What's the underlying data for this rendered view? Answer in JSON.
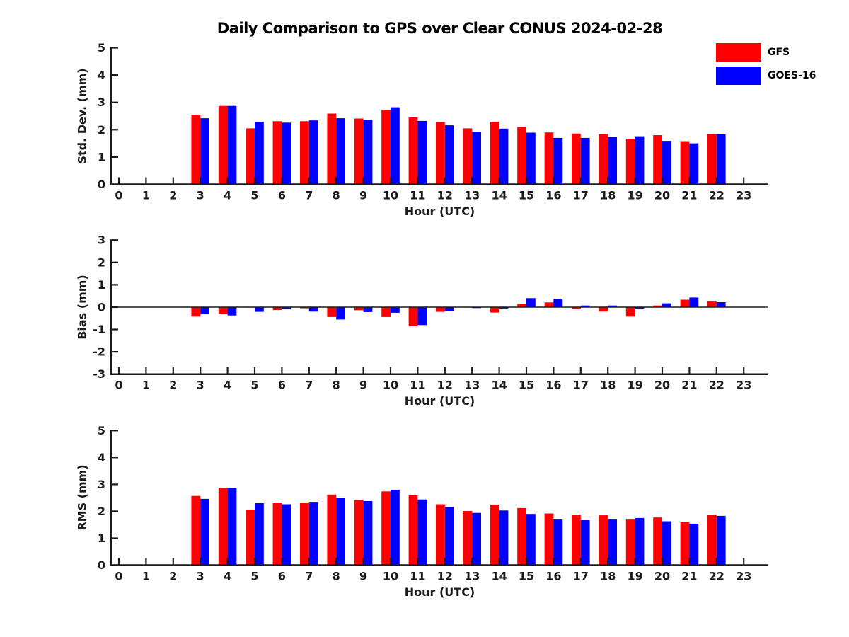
{
  "title": "Daily Comparison to GPS over Clear CONUS 2024-02-28",
  "legend": {
    "position": "top-right",
    "items": [
      {
        "label": "GFS",
        "color": "#ff0000"
      },
      {
        "label": "GOES-16",
        "color": "#0000ff"
      }
    ]
  },
  "colors": {
    "background": "#ffffff",
    "axis": "#1a1a1a",
    "gfs": "#ff0000",
    "goes16": "#0000ff"
  },
  "chart_data": [
    {
      "type": "bar",
      "title": "",
      "ylabel": "Std. Dev. (mm)",
      "xlabel": "Hour (UTC)",
      "ylim": [
        0,
        5
      ],
      "yticks": [
        0,
        1,
        2,
        3,
        4,
        5
      ],
      "grid": false,
      "categories": [
        0,
        1,
        2,
        3,
        4,
        5,
        6,
        7,
        8,
        9,
        10,
        11,
        12,
        13,
        14,
        15,
        16,
        17,
        18,
        19,
        20,
        21,
        22,
        23
      ],
      "series": [
        {
          "name": "GFS",
          "color": "#ff0000",
          "values": [
            null,
            null,
            null,
            2.55,
            2.87,
            2.05,
            2.31,
            2.31,
            2.59,
            2.41,
            2.73,
            2.45,
            2.28,
            2.05,
            2.29,
            2.1,
            1.9,
            1.86,
            1.84,
            1.67,
            1.8,
            1.58,
            1.84,
            null
          ]
        },
        {
          "name": "GOES-16",
          "color": "#0000ff",
          "values": [
            null,
            null,
            null,
            2.42,
            2.87,
            2.29,
            2.26,
            2.34,
            2.42,
            2.36,
            2.82,
            2.32,
            2.16,
            1.93,
            2.04,
            1.89,
            1.7,
            1.7,
            1.73,
            1.76,
            1.59,
            1.5,
            1.84,
            null
          ]
        }
      ]
    },
    {
      "type": "bar",
      "title": "",
      "ylabel": "Bias (mm)",
      "xlabel": "Hour (UTC)",
      "ylim": [
        -3,
        3
      ],
      "yticks": [
        3,
        2,
        1,
        0,
        -1,
        -2,
        -3
      ],
      "zero_line": true,
      "grid": false,
      "categories": [
        0,
        1,
        2,
        3,
        4,
        5,
        6,
        7,
        8,
        9,
        10,
        11,
        12,
        13,
        14,
        15,
        16,
        17,
        18,
        19,
        20,
        21,
        22,
        23
      ],
      "series": [
        {
          "name": "GFS",
          "color": "#ff0000",
          "values": [
            null,
            null,
            null,
            -0.42,
            -0.32,
            -0.02,
            -0.13,
            -0.05,
            -0.44,
            -0.14,
            -0.44,
            -0.85,
            -0.21,
            -0.02,
            -0.24,
            0.14,
            0.21,
            -0.08,
            -0.2,
            -0.42,
            0.07,
            0.33,
            0.28,
            null
          ]
        },
        {
          "name": "GOES-16",
          "color": "#0000ff",
          "values": [
            null,
            null,
            null,
            -0.32,
            -0.37,
            -0.21,
            -0.08,
            -0.2,
            -0.55,
            -0.22,
            -0.25,
            -0.8,
            -0.16,
            -0.04,
            -0.06,
            0.4,
            0.37,
            0.07,
            0.07,
            -0.07,
            0.17,
            0.43,
            0.22,
            null
          ]
        }
      ]
    },
    {
      "type": "bar",
      "title": "",
      "ylabel": "RMS (mm)",
      "xlabel": "Hour (UTC)",
      "ylim": [
        0,
        5
      ],
      "yticks": [
        0,
        1,
        2,
        3,
        4,
        5
      ],
      "grid": false,
      "categories": [
        0,
        1,
        2,
        3,
        4,
        5,
        6,
        7,
        8,
        9,
        10,
        11,
        12,
        13,
        14,
        15,
        16,
        17,
        18,
        19,
        20,
        21,
        22,
        23
      ],
      "series": [
        {
          "name": "GFS",
          "color": "#ff0000",
          "values": [
            null,
            null,
            null,
            2.57,
            2.87,
            2.06,
            2.32,
            2.32,
            2.62,
            2.42,
            2.74,
            2.6,
            2.26,
            2.01,
            2.25,
            2.12,
            1.92,
            1.88,
            1.85,
            1.72,
            1.77,
            1.6,
            1.86,
            null
          ]
        },
        {
          "name": "GOES-16",
          "color": "#0000ff",
          "values": [
            null,
            null,
            null,
            2.46,
            2.87,
            2.3,
            2.26,
            2.35,
            2.5,
            2.38,
            2.8,
            2.44,
            2.16,
            1.94,
            2.03,
            1.9,
            1.72,
            1.69,
            1.72,
            1.75,
            1.63,
            1.54,
            1.83,
            null
          ]
        }
      ]
    }
  ]
}
